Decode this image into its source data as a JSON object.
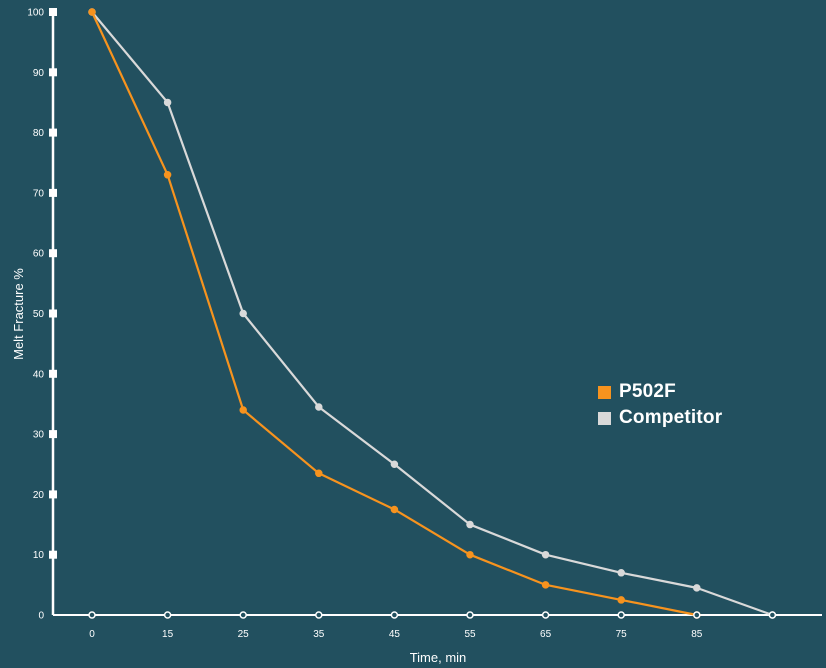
{
  "chart_data": {
    "type": "line",
    "title": "",
    "xlabel": "Time, min",
    "ylabel": "Melt Fracture %",
    "x_ticks": [
      "0",
      "15",
      "25",
      "35",
      "45",
      "55",
      "65",
      "75",
      "85",
      ""
    ],
    "y_ticks": [
      "0",
      "10",
      "20",
      "30",
      "40",
      "50",
      "60",
      "70",
      "80",
      "90",
      "100"
    ],
    "ylim": [
      0,
      100
    ],
    "grid": false,
    "legend_position": "right",
    "series": [
      {
        "name": "P502F",
        "color": "#f7931e",
        "points": [
          {
            "x": 0,
            "y": 100
          },
          {
            "x": 15,
            "y": 73
          },
          {
            "x": 25,
            "y": 34
          },
          {
            "x": 35,
            "y": 23.5
          },
          {
            "x": 45,
            "y": 17.5
          },
          {
            "x": 55,
            "y": 10
          },
          {
            "x": 65,
            "y": 5
          },
          {
            "x": 75,
            "y": 2.5
          },
          {
            "x": 85,
            "y": 0
          }
        ]
      },
      {
        "name": "Competitor",
        "color": "#d9d9d9",
        "points": [
          {
            "x": 0,
            "y": 100
          },
          {
            "x": 15,
            "y": 85
          },
          {
            "x": 25,
            "y": 50
          },
          {
            "x": 35,
            "y": 34.5
          },
          {
            "x": 45,
            "y": 25
          },
          {
            "x": 55,
            "y": 15
          },
          {
            "x": 65,
            "y": 10
          },
          {
            "x": 75,
            "y": 7
          },
          {
            "x": 85,
            "y": 4.5
          },
          {
            "x": 95,
            "y": 0
          }
        ]
      }
    ]
  },
  "legend": {
    "items": [
      {
        "label": "P502F",
        "color": "#f7931e"
      },
      {
        "label": "Competitor",
        "color": "#d9d9d9"
      }
    ]
  }
}
